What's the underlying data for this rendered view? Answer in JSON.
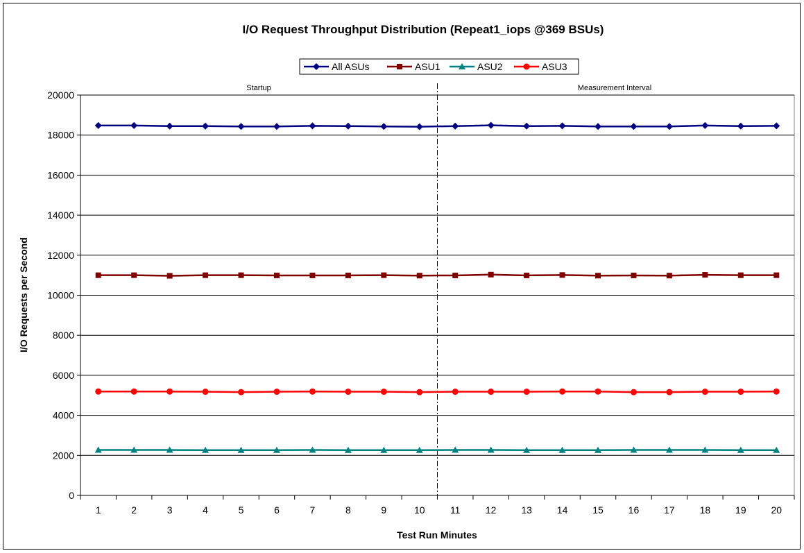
{
  "chart_data": {
    "type": "line",
    "title": "I/O Request Throughput Distribution (Repeat1_iops @369 BSUs)",
    "xlabel": "Test Run Minutes",
    "ylabel": "I/O Requests per Second",
    "ylim": [
      0,
      20000
    ],
    "yticks": [
      "0",
      "2000",
      "4000",
      "6000",
      "8000",
      "10000",
      "12000",
      "14000",
      "16000",
      "18000",
      "20000"
    ],
    "x": [
      1,
      2,
      3,
      4,
      5,
      6,
      7,
      8,
      9,
      10,
      11,
      12,
      13,
      14,
      15,
      16,
      17,
      18,
      19,
      20
    ],
    "x_labels": [
      "1",
      "2",
      "3",
      "4",
      "5",
      "6",
      "7",
      "8",
      "9",
      "10",
      "11",
      "12",
      "13",
      "14",
      "15",
      "16",
      "17",
      "18",
      "19",
      "20"
    ],
    "grid": "horizontal",
    "legend_position": "top",
    "regions": [
      {
        "label": "Startup"
      },
      {
        "label": "Measurement Interval"
      }
    ],
    "divider_after_x": 10,
    "series": [
      {
        "name": "All ASUs",
        "color": "#000080",
        "marker": "diamond",
        "values": [
          18480,
          18480,
          18450,
          18450,
          18430,
          18430,
          18460,
          18450,
          18430,
          18420,
          18450,
          18490,
          18450,
          18460,
          18430,
          18430,
          18430,
          18480,
          18450,
          18460
        ]
      },
      {
        "name": "ASU1",
        "color": "#800000",
        "marker": "square",
        "values": [
          11000,
          11000,
          10970,
          11000,
          11000,
          10990,
          10990,
          10990,
          11000,
          10980,
          10990,
          11030,
          10990,
          11010,
          10980,
          10990,
          10980,
          11020,
          11000,
          11000
        ]
      },
      {
        "name": "ASU2",
        "color": "#008080",
        "marker": "triangle",
        "values": [
          2270,
          2270,
          2270,
          2260,
          2260,
          2260,
          2270,
          2260,
          2260,
          2260,
          2270,
          2270,
          2260,
          2260,
          2260,
          2270,
          2270,
          2270,
          2260,
          2260
        ]
      },
      {
        "name": "ASU3",
        "color": "#ff0000",
        "marker": "circle",
        "values": [
          5190,
          5190,
          5190,
          5180,
          5160,
          5180,
          5190,
          5180,
          5180,
          5160,
          5180,
          5180,
          5180,
          5190,
          5190,
          5160,
          5160,
          5180,
          5180,
          5190
        ]
      }
    ]
  }
}
